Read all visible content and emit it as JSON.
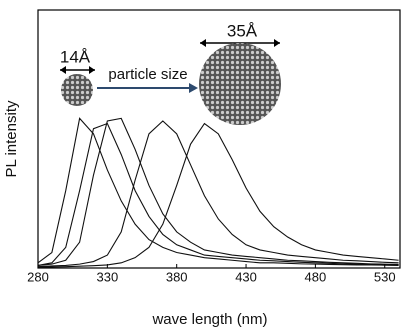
{
  "chart_data": {
    "type": "line",
    "x_label": "wave length (nm)",
    "y_label": "PL intensity",
    "annotations": [
      "14Å",
      "particle size",
      "35Å"
    ],
    "xlim": [
      280,
      541
    ],
    "ylim": [
      0,
      1
    ],
    "xticks": [
      280,
      330,
      380,
      430,
      480,
      530
    ],
    "x": [
      280,
      290,
      300,
      310,
      320,
      330,
      340,
      350,
      360,
      370,
      380,
      390,
      400,
      410,
      420,
      430,
      440,
      450,
      460,
      470,
      480,
      490,
      500,
      510,
      520,
      530,
      540
    ],
    "series": [
      {
        "color": "#111111",
        "values": [
          0.02,
          0.06,
          0.3,
          0.58,
          0.52,
          0.38,
          0.26,
          0.17,
          0.11,
          0.08,
          0.06,
          0.05,
          0.04,
          0.035,
          0.03,
          0.025,
          0.02,
          0.02,
          0.018,
          0.016,
          0.015,
          0.014,
          0.013,
          0.012,
          0.012,
          0.011,
          0.01
        ]
      },
      {
        "color": "#111111",
        "values": [
          0.01,
          0.02,
          0.08,
          0.3,
          0.54,
          0.56,
          0.44,
          0.3,
          0.2,
          0.13,
          0.09,
          0.07,
          0.05,
          0.045,
          0.04,
          0.035,
          0.03,
          0.028,
          0.025,
          0.022,
          0.02,
          0.018,
          0.016,
          0.015,
          0.014,
          0.013,
          0.012
        ]
      },
      {
        "color": "#111111",
        "values": [
          0.01,
          0.015,
          0.03,
          0.1,
          0.36,
          0.57,
          0.58,
          0.46,
          0.32,
          0.21,
          0.14,
          0.1,
          0.07,
          0.06,
          0.05,
          0.045,
          0.04,
          0.035,
          0.03,
          0.028,
          0.025,
          0.022,
          0.02,
          0.018,
          0.016,
          0.015,
          0.014
        ]
      },
      {
        "color": "#111111",
        "values": [
          0.005,
          0.008,
          0.01,
          0.015,
          0.025,
          0.05,
          0.14,
          0.34,
          0.52,
          0.57,
          0.52,
          0.4,
          0.28,
          0.19,
          0.13,
          0.09,
          0.07,
          0.06,
          0.05,
          0.045,
          0.04,
          0.035,
          0.03,
          0.028,
          0.025,
          0.022,
          0.02
        ]
      },
      {
        "color": "#111111",
        "values": [
          0.003,
          0.004,
          0.005,
          0.007,
          0.009,
          0.012,
          0.02,
          0.04,
          0.08,
          0.17,
          0.32,
          0.48,
          0.56,
          0.52,
          0.42,
          0.31,
          0.22,
          0.16,
          0.12,
          0.09,
          0.07,
          0.06,
          0.05,
          0.045,
          0.04,
          0.035,
          0.03
        ]
      }
    ]
  }
}
